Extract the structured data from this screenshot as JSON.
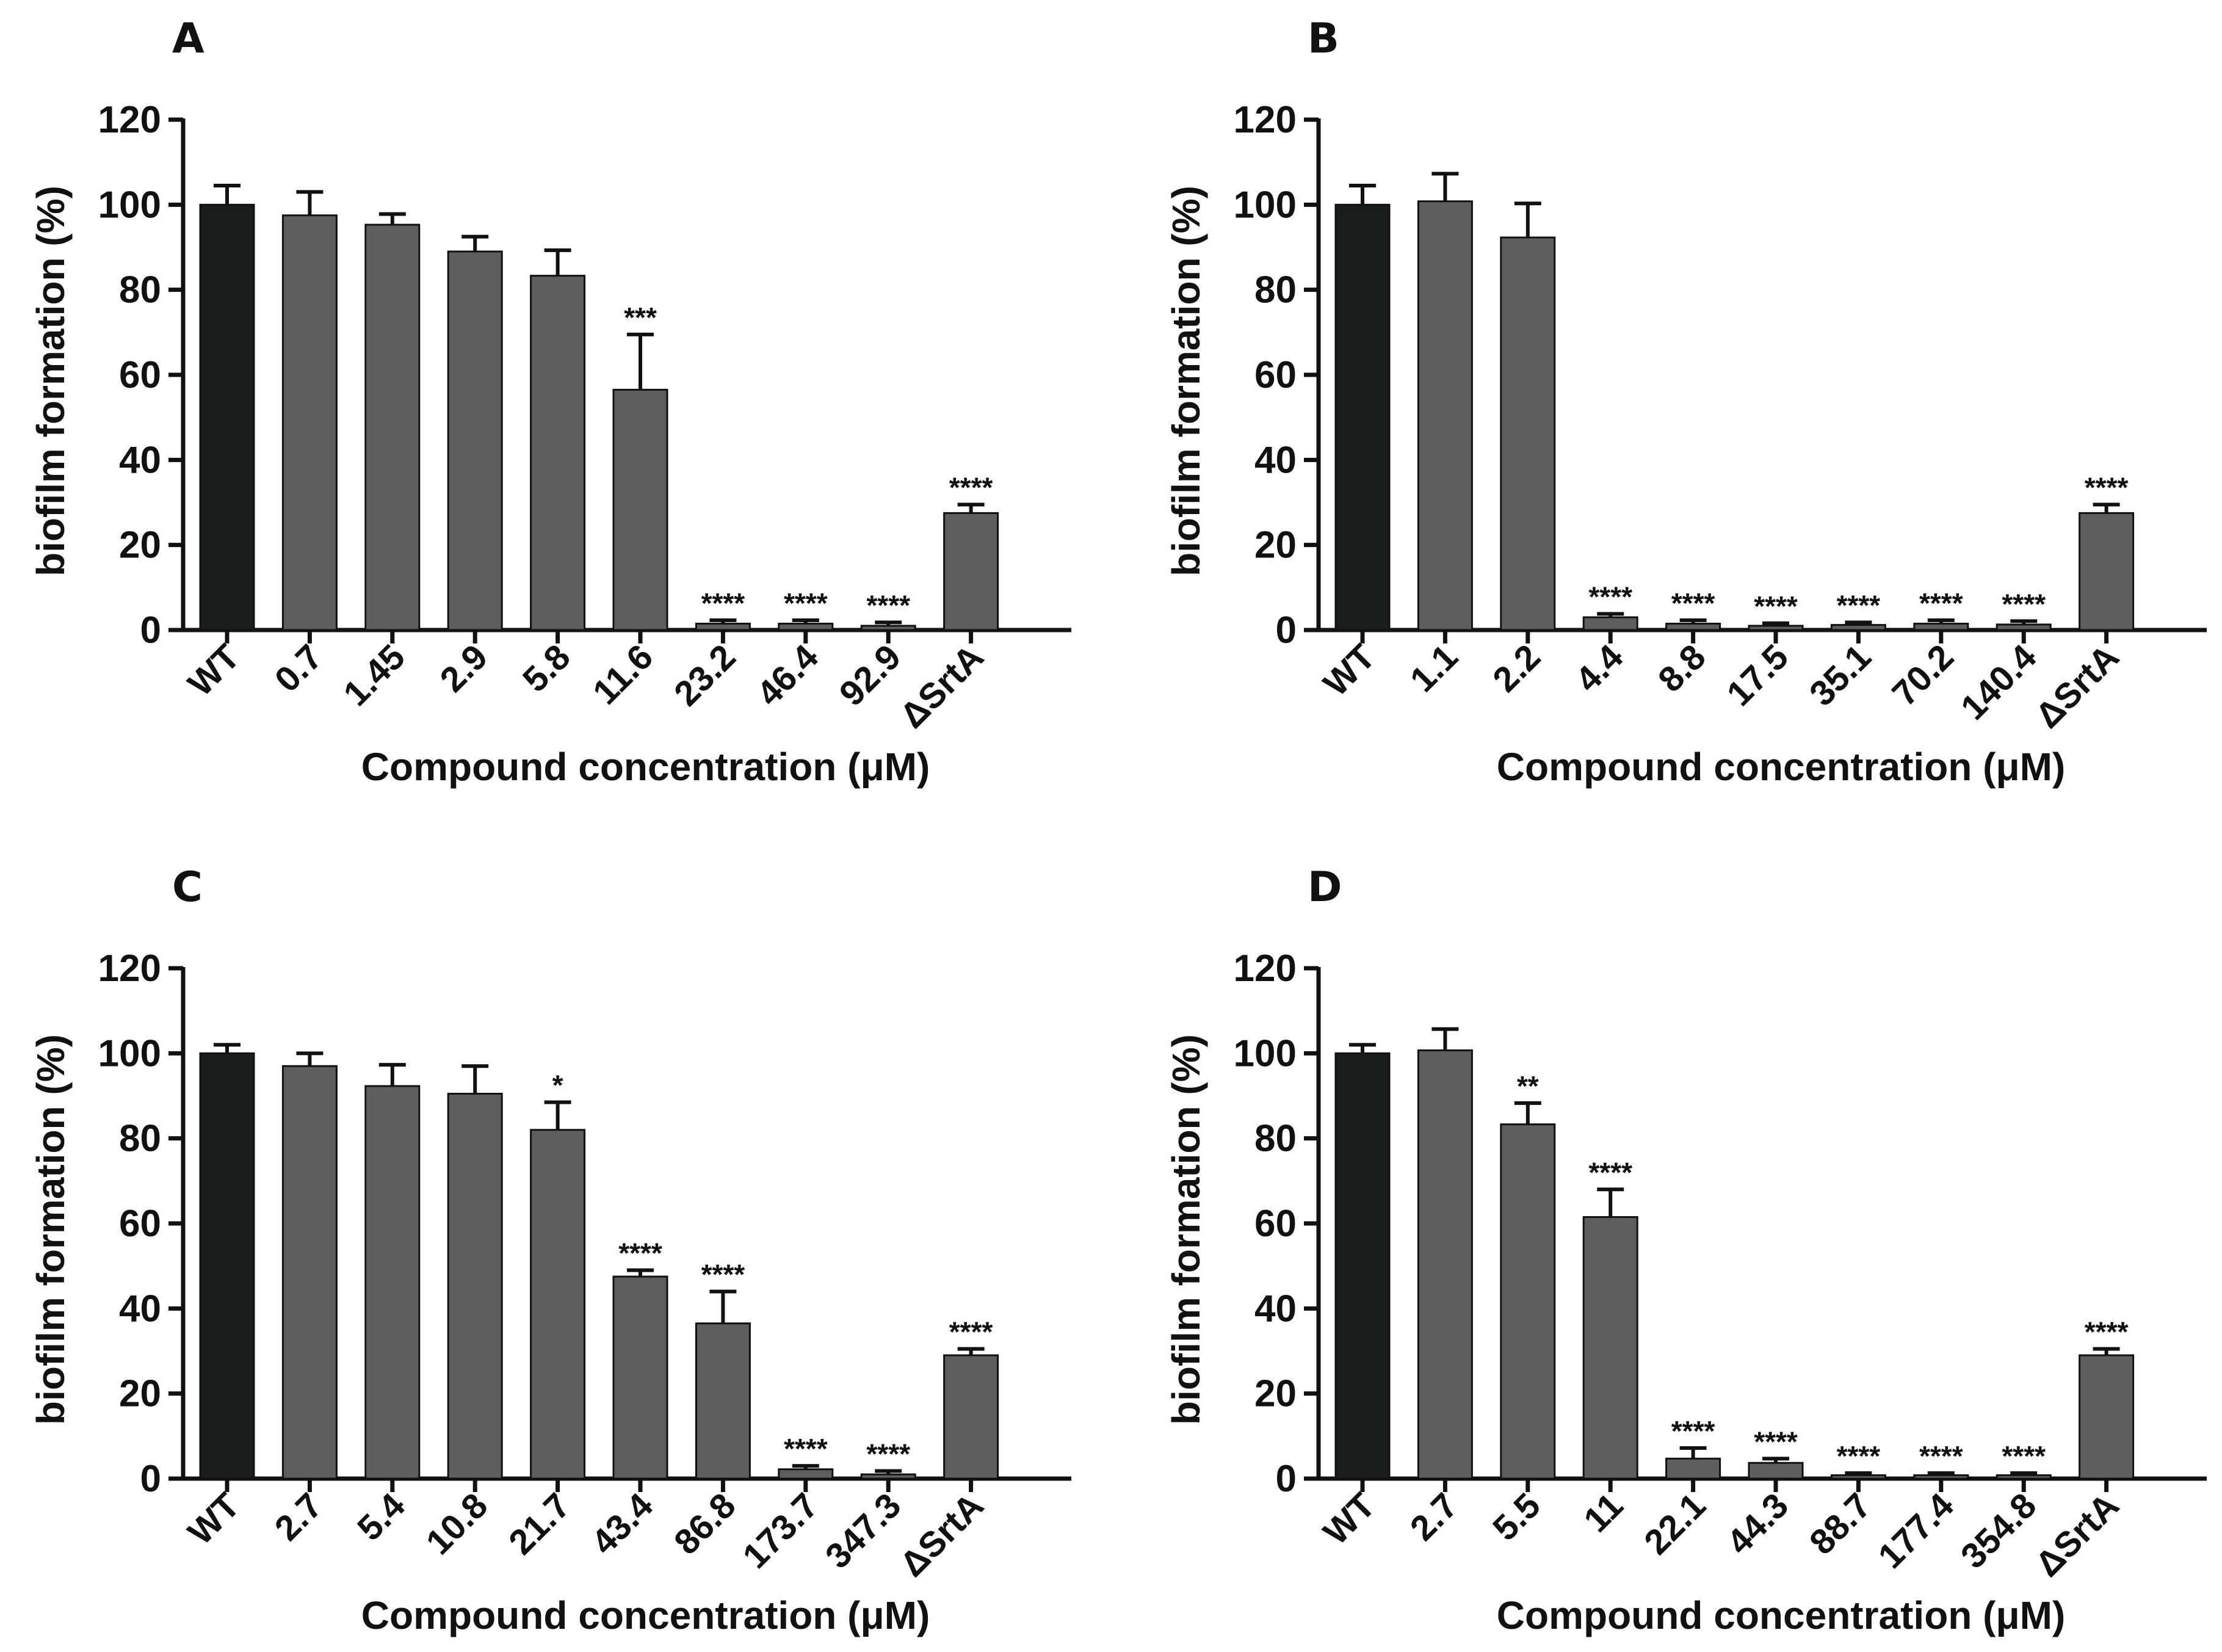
{
  "figure": {
    "panel_letters": [
      "A",
      "B",
      "C",
      "D"
    ]
  },
  "colors": {
    "control_bar": "#1a1e1b",
    "treated_bar": "#605e5c",
    "axis": "#111111"
  },
  "chart_data": [
    {
      "panel": "A",
      "type": "bar",
      "title": "",
      "xlabel": "Compound concentration (μM)",
      "ylabel": "biofilm formation (%)",
      "ylim": [
        0,
        120
      ],
      "yticks": [
        "0",
        "20",
        "40",
        "60",
        "80",
        "100",
        "120"
      ],
      "categories": [
        "WT",
        "0.7",
        "1.45",
        "2.9",
        "5.8",
        "11.6",
        "23.2",
        "46.4",
        "92.9",
        "ΔSrtA"
      ],
      "values": [
        100,
        97.5,
        95.3,
        89,
        83.3,
        56.5,
        1.5,
        1.5,
        1,
        27.5
      ],
      "errors": [
        4.5,
        5.5,
        2.5,
        3.5,
        6,
        13,
        0.8,
        0.8,
        0.8,
        2
      ],
      "significance": [
        "",
        "",
        "",
        "",
        "",
        "***",
        "****",
        "****",
        "****",
        "****"
      ]
    },
    {
      "panel": "B",
      "type": "bar",
      "title": "",
      "xlabel": "Compound concentration (μM)",
      "ylabel": "biofilm formation (%)",
      "ylim": [
        0,
        120
      ],
      "yticks": [
        "0",
        "20",
        "40",
        "60",
        "80",
        "100",
        "120"
      ],
      "categories": [
        "WT",
        "1.1",
        "2.2",
        "4.4",
        "8.8",
        "17.5",
        "35.1",
        "70.2",
        "140.4",
        "ΔSrtA"
      ],
      "values": [
        100,
        100.8,
        92.3,
        3,
        1.5,
        1,
        1.2,
        1.5,
        1.3,
        27.5
      ],
      "errors": [
        4.5,
        6.5,
        8,
        0.8,
        0.8,
        0.6,
        0.6,
        0.8,
        0.8,
        2
      ],
      "significance": [
        "",
        "",
        "",
        "****",
        "****",
        "****",
        "****",
        "****",
        "****",
        "****"
      ]
    },
    {
      "panel": "C",
      "type": "bar",
      "title": "",
      "xlabel": "Compound concentration (μM)",
      "ylabel": "biofilm formation (%)",
      "ylim": [
        0,
        120
      ],
      "yticks": [
        "0",
        "20",
        "40",
        "60",
        "80",
        "100",
        "120"
      ],
      "categories": [
        "WT",
        "2.7",
        "5.4",
        "10.8",
        "21.7",
        "43.4",
        "86.8",
        "173.7",
        "347.3",
        "ΔSrtA"
      ],
      "values": [
        100,
        97,
        92.3,
        90.5,
        82,
        47.5,
        36.5,
        2.2,
        1,
        29
      ],
      "errors": [
        2,
        3,
        5,
        6.5,
        6.5,
        1.5,
        7.5,
        0.8,
        0.8,
        1.5
      ],
      "significance": [
        "",
        "",
        "",
        "",
        "*",
        "****",
        "****",
        "****",
        "****",
        "****"
      ]
    },
    {
      "panel": "D",
      "type": "bar",
      "title": "",
      "xlabel": "Compound concentration (μM)",
      "ylabel": "biofilm formation (%)",
      "ylim": [
        0,
        120
      ],
      "yticks": [
        "0",
        "20",
        "40",
        "60",
        "80",
        "100",
        "120"
      ],
      "categories": [
        "WT",
        "2.7",
        "5.5",
        "11",
        "22.1",
        "44.3",
        "88.7",
        "177.4",
        "354.8",
        "ΔSrtA"
      ],
      "values": [
        100,
        100.7,
        83.3,
        61.5,
        4.7,
        3.7,
        0.8,
        0.8,
        0.8,
        29
      ],
      "errors": [
        2,
        5,
        5,
        6.5,
        2.5,
        1,
        0.5,
        0.5,
        0.5,
        1.5
      ],
      "significance": [
        "",
        "",
        "**",
        "****",
        "****",
        "****",
        "****",
        "****",
        "****",
        "****"
      ]
    }
  ]
}
